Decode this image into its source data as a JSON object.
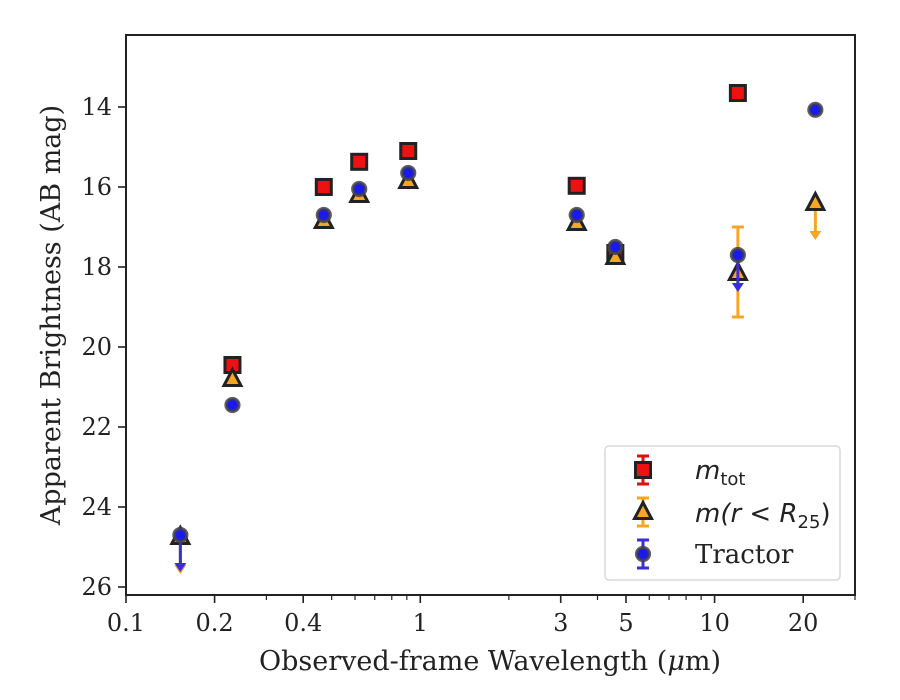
{
  "chart_data": {
    "type": "scatter",
    "xlabel_parts": {
      "pre": "Observed-frame Wavelength (",
      "mu": "μ",
      "post": "m)"
    },
    "ylabel": "Apparent Brightness (AB mag)",
    "x_scale": "log",
    "xlim": [
      0.1,
      30
    ],
    "ylim": [
      26.2,
      12.2
    ],
    "y_inverted": true,
    "x_ticks": [
      {
        "value": 0.1,
        "label": "0.1"
      },
      {
        "value": 0.2,
        "label": "0.2"
      },
      {
        "value": 0.4,
        "label": "0.4"
      },
      {
        "value": 1,
        "label": "1"
      },
      {
        "value": 3,
        "label": "3"
      },
      {
        "value": 5,
        "label": "5"
      },
      {
        "value": 10,
        "label": "10"
      },
      {
        "value": 20,
        "label": "20"
      }
    ],
    "x_minor_ticks": [
      0.3,
      0.5,
      0.6,
      0.7,
      0.8,
      0.9,
      2,
      4,
      6,
      7,
      8,
      9,
      30
    ],
    "y_ticks": [
      {
        "value": 14,
        "label": "14"
      },
      {
        "value": 16,
        "label": "16"
      },
      {
        "value": 18,
        "label": "18"
      },
      {
        "value": 20,
        "label": "20"
      },
      {
        "value": 22,
        "label": "22"
      },
      {
        "value": 24,
        "label": "24"
      },
      {
        "value": 26,
        "label": "26"
      }
    ],
    "legend_position": "lower-right",
    "series": [
      {
        "key": "mtot",
        "marker": "square",
        "color": "#ee1111",
        "errcolor": "#dd1111",
        "points": [
          {
            "x": 0.23,
            "y": 20.45
          },
          {
            "x": 0.47,
            "y": 16.0
          },
          {
            "x": 0.62,
            "y": 15.37
          },
          {
            "x": 0.91,
            "y": 15.1
          },
          {
            "x": 3.4,
            "y": 15.97
          },
          {
            "x": 4.6,
            "y": 17.65
          },
          {
            "x": 12.0,
            "y": 13.65
          }
        ]
      },
      {
        "key": "mr25",
        "marker": "triangle",
        "color": "#f6a623",
        "errcolor": "#f6a623",
        "points": [
          {
            "x": 0.153,
            "y": 24.75,
            "upper_limit": true
          },
          {
            "x": 0.23,
            "y": 20.8
          },
          {
            "x": 0.47,
            "y": 16.85
          },
          {
            "x": 0.62,
            "y": 16.2
          },
          {
            "x": 0.91,
            "y": 15.85
          },
          {
            "x": 3.4,
            "y": 16.9
          },
          {
            "x": 4.6,
            "y": 17.75
          },
          {
            "x": 12.0,
            "y": 18.15,
            "err_lo": 17.0,
            "err_hi": 19.25
          },
          {
            "x": 22.0,
            "y": 16.4,
            "upper_limit": true
          }
        ]
      },
      {
        "key": "tractor",
        "marker": "circle",
        "color": "#1a1aee",
        "errcolor": "#3a2ed6",
        "points": [
          {
            "x": 0.153,
            "y": 24.7,
            "upper_limit": true
          },
          {
            "x": 0.23,
            "y": 21.45
          },
          {
            "x": 0.47,
            "y": 16.7
          },
          {
            "x": 0.62,
            "y": 16.05
          },
          {
            "x": 0.91,
            "y": 15.65
          },
          {
            "x": 3.4,
            "y": 16.7
          },
          {
            "x": 4.6,
            "y": 17.5
          },
          {
            "x": 12.0,
            "y": 17.7,
            "upper_limit": true
          },
          {
            "x": 22.0,
            "y": 14.07
          }
        ]
      }
    ],
    "legend": [
      {
        "key": "mtot",
        "parts": {
          "m": "m",
          "sub": "tot"
        }
      },
      {
        "key": "mr25",
        "parts": {
          "pre": "m(r < R",
          "sub": "25",
          "post": ")"
        }
      },
      {
        "key": "tractor",
        "text": "Tractor"
      }
    ]
  }
}
